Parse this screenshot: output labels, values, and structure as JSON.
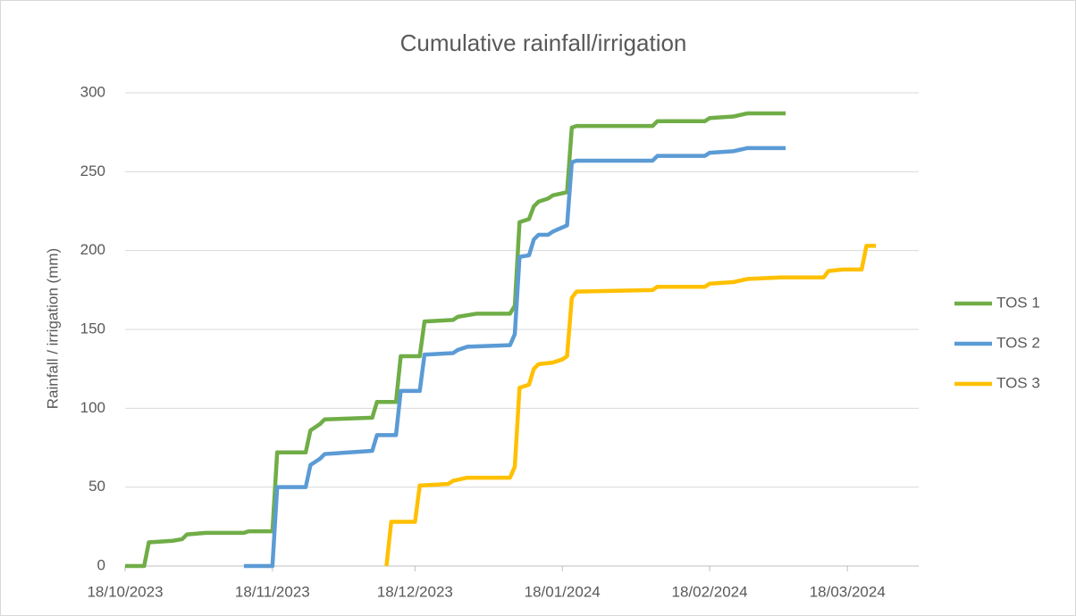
{
  "chart_data": {
    "type": "line",
    "title": "Cumulative rainfall/irrigation",
    "y_label": "Rainfall / irrigation (mm)",
    "xlim": [
      "2023-10-18",
      "2024-04-02"
    ],
    "xticks": [
      {
        "value": "2023-10-18",
        "label": "18/10/2023"
      },
      {
        "value": "2023-11-18",
        "label": "18/11/2023"
      },
      {
        "value": "2023-12-18",
        "label": "18/12/2023"
      },
      {
        "value": "2024-01-18",
        "label": "18/01/2024"
      },
      {
        "value": "2024-02-18",
        "label": "18/02/2024"
      },
      {
        "value": "2024-03-18",
        "label": "18/03/2024"
      }
    ],
    "ylim": [
      0,
      300
    ],
    "yticks": [
      0,
      50,
      100,
      150,
      200,
      250,
      300
    ],
    "grid": true,
    "legend": "right",
    "series": [
      {
        "name": "TOS 1",
        "color": "#70ad47",
        "x": [
          "2023-10-18",
          "2023-10-22",
          "2023-10-23",
          "2023-10-28",
          "2023-10-30",
          "2023-10-31",
          "2023-11-04",
          "2023-11-12",
          "2023-11-13",
          "2023-11-18",
          "2023-11-19",
          "2023-11-25",
          "2023-11-26",
          "2023-11-28",
          "2023-11-29",
          "2023-12-09",
          "2023-12-10",
          "2023-12-14",
          "2023-12-15",
          "2023-12-19",
          "2023-12-20",
          "2023-12-26",
          "2023-12-27",
          "2023-12-31",
          "2024-01-07",
          "2024-01-08",
          "2024-01-09",
          "2024-01-11",
          "2024-01-12",
          "2024-01-13",
          "2024-01-15",
          "2024-01-16",
          "2024-01-19",
          "2024-01-20",
          "2024-01-21",
          "2024-02-06",
          "2024-02-07",
          "2024-02-17",
          "2024-02-18",
          "2024-02-23",
          "2024-02-26",
          "2024-03-05"
        ],
        "values": [
          0,
          0,
          15,
          16,
          17,
          20,
          21,
          21,
          22,
          22,
          72,
          72,
          86,
          90,
          93,
          94,
          104,
          104,
          133,
          133,
          155,
          156,
          158,
          160,
          160,
          165,
          218,
          220,
          228,
          231,
          233,
          235,
          237,
          278,
          279,
          279,
          282,
          282,
          284,
          285,
          287,
          287
        ]
      },
      {
        "name": "TOS 2",
        "color": "#5b9bd5",
        "x": [
          "2023-11-12",
          "2023-11-18",
          "2023-11-19",
          "2023-11-25",
          "2023-11-26",
          "2023-11-28",
          "2023-11-29",
          "2023-12-09",
          "2023-12-10",
          "2023-12-14",
          "2023-12-15",
          "2023-12-19",
          "2023-12-20",
          "2023-12-26",
          "2023-12-27",
          "2023-12-29",
          "2024-01-07",
          "2024-01-08",
          "2024-01-09",
          "2024-01-11",
          "2024-01-12",
          "2024-01-13",
          "2024-01-15",
          "2024-01-16",
          "2024-01-19",
          "2024-01-20",
          "2024-01-21",
          "2024-02-06",
          "2024-02-07",
          "2024-02-17",
          "2024-02-18",
          "2024-02-23",
          "2024-02-26",
          "2024-03-05"
        ],
        "values": [
          0,
          0,
          50,
          50,
          64,
          68,
          71,
          73,
          83,
          83,
          111,
          111,
          134,
          135,
          137,
          139,
          140,
          147,
          196,
          197,
          207,
          210,
          210,
          212,
          216,
          256,
          257,
          257,
          260,
          260,
          262,
          263,
          265,
          265
        ]
      },
      {
        "name": "TOS 3",
        "color": "#ffc000",
        "x": [
          "2023-12-12",
          "2023-12-13",
          "2023-12-18",
          "2023-12-19",
          "2023-12-25",
          "2023-12-26",
          "2023-12-29",
          "2024-01-07",
          "2024-01-08",
          "2024-01-09",
          "2024-01-11",
          "2024-01-12",
          "2024-01-13",
          "2024-01-16",
          "2024-01-18",
          "2024-01-19",
          "2024-01-20",
          "2024-01-21",
          "2024-02-06",
          "2024-02-07",
          "2024-02-17",
          "2024-02-18",
          "2024-02-23",
          "2024-02-26",
          "2024-03-04",
          "2024-03-13",
          "2024-03-14",
          "2024-03-17",
          "2024-03-21",
          "2024-03-22",
          "2024-03-24"
        ],
        "values": [
          0,
          28,
          28,
          51,
          52,
          54,
          56,
          56,
          63,
          113,
          115,
          125,
          128,
          129,
          131,
          133,
          170,
          174,
          175,
          177,
          177,
          179,
          180,
          182,
          183,
          183,
          187,
          188,
          188,
          203,
          203
        ]
      }
    ]
  }
}
